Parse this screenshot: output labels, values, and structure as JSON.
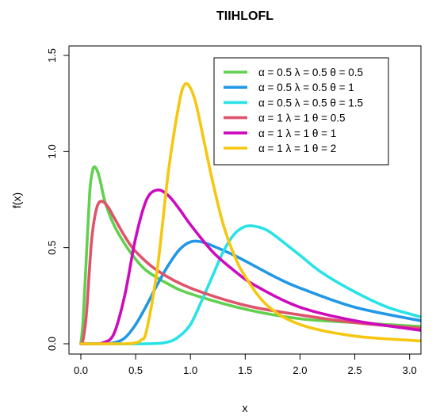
{
  "chart_data": {
    "type": "line",
    "title": "TIIHLOFL",
    "xlabel": "x",
    "ylabel": "f(x)",
    "xlim": [
      0,
      3.1
    ],
    "ylim": [
      0,
      1.5
    ],
    "xticks": [
      "0.0",
      "0.5",
      "1.0",
      "1.5",
      "2.0",
      "2.5",
      "3.0"
    ],
    "yticks": [
      "0.0",
      "0.5",
      "1.0",
      "1.5"
    ],
    "grid": false,
    "legend_position": "top-right",
    "series": [
      {
        "name": "α = 0.5  λ = 0.5  θ = 0.5",
        "color": "#61d04f",
        "x": [
          0,
          0.02,
          0.05,
          0.08,
          0.1,
          0.12,
          0.15,
          0.18,
          0.22,
          0.3,
          0.4,
          0.5,
          0.6,
          0.8,
          1.0,
          1.5,
          2.0,
          2.5,
          3.1
        ],
        "y": [
          0,
          0.12,
          0.45,
          0.78,
          0.88,
          0.92,
          0.9,
          0.84,
          0.74,
          0.62,
          0.52,
          0.44,
          0.38,
          0.31,
          0.26,
          0.18,
          0.13,
          0.11,
          0.09
        ]
      },
      {
        "name": "α = 0.5  λ = 0.5  θ = 1",
        "color": "#2297e6",
        "x": [
          0,
          0.2,
          0.3,
          0.4,
          0.5,
          0.6,
          0.7,
          0.8,
          0.9,
          1.0,
          1.1,
          1.2,
          1.4,
          1.6,
          1.8,
          2.0,
          2.5,
          3.1
        ],
        "y": [
          0,
          0,
          0.005,
          0.03,
          0.1,
          0.2,
          0.31,
          0.41,
          0.49,
          0.53,
          0.53,
          0.51,
          0.46,
          0.4,
          0.34,
          0.29,
          0.19,
          0.12
        ]
      },
      {
        "name": "α = 0.5  λ = 0.5  θ = 1.5",
        "color": "#28e2e5",
        "x": [
          0,
          0.6,
          0.8,
          0.9,
          1.0,
          1.1,
          1.2,
          1.3,
          1.4,
          1.5,
          1.6,
          1.7,
          1.8,
          2.0,
          2.2,
          2.5,
          2.8,
          3.1
        ],
        "y": [
          0,
          0,
          0.01,
          0.04,
          0.1,
          0.22,
          0.35,
          0.48,
          0.57,
          0.61,
          0.61,
          0.59,
          0.55,
          0.46,
          0.37,
          0.27,
          0.19,
          0.14
        ]
      },
      {
        "name": "α = 1  λ = 1  θ = 0.5",
        "color": "#df536b",
        "x": [
          0,
          0.02,
          0.05,
          0.08,
          0.1,
          0.13,
          0.16,
          0.2,
          0.25,
          0.3,
          0.4,
          0.5,
          0.7,
          1.0,
          1.5,
          2.0,
          2.5,
          3.1
        ],
        "y": [
          0,
          0.02,
          0.15,
          0.4,
          0.55,
          0.67,
          0.73,
          0.74,
          0.71,
          0.66,
          0.56,
          0.48,
          0.38,
          0.29,
          0.2,
          0.15,
          0.11,
          0.08
        ]
      },
      {
        "name": "α = 1  λ = 1  θ = 1",
        "color": "#cd0bbc",
        "x": [
          0,
          0.1,
          0.2,
          0.3,
          0.4,
          0.5,
          0.6,
          0.7,
          0.8,
          0.9,
          1.0,
          1.2,
          1.4,
          1.6,
          2.0,
          2.5,
          3.1
        ],
        "y": [
          0,
          0,
          0.005,
          0.05,
          0.25,
          0.55,
          0.75,
          0.8,
          0.77,
          0.7,
          0.62,
          0.48,
          0.38,
          0.3,
          0.19,
          0.12,
          0.07
        ]
      },
      {
        "name": "α = 1  λ = 1  θ = 2",
        "color": "#f5c710",
        "x": [
          0,
          0.4,
          0.5,
          0.55,
          0.6,
          0.7,
          0.8,
          0.9,
          0.95,
          1.0,
          1.05,
          1.1,
          1.2,
          1.3,
          1.4,
          1.5,
          1.7,
          2.0,
          2.5,
          3.1
        ],
        "y": [
          0,
          0,
          0.005,
          0.02,
          0.07,
          0.4,
          0.9,
          1.26,
          1.35,
          1.33,
          1.25,
          1.12,
          0.85,
          0.62,
          0.46,
          0.35,
          0.2,
          0.1,
          0.04,
          0.015
        ]
      }
    ]
  }
}
